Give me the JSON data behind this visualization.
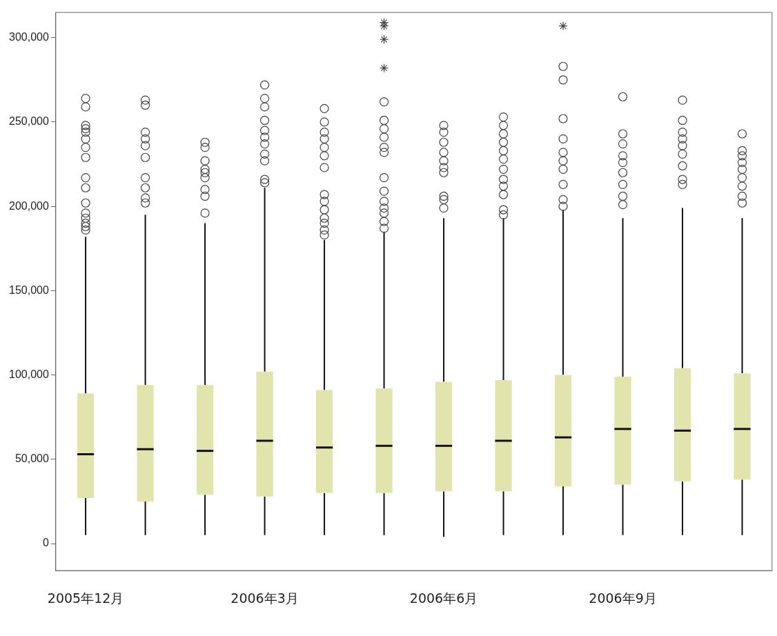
{
  "chart_data": {
    "type": "box",
    "categories": [
      "2005年12月",
      null,
      null,
      "2006年3月",
      null,
      null,
      "2006年6月",
      null,
      null,
      "2006年9月",
      null,
      null
    ],
    "color": "#e2e4ae",
    "ylim": [
      -16000,
      315000
    ],
    "yticks": [
      {
        "value": 0,
        "label": "0"
      },
      {
        "value": 50000,
        "label": "50,000"
      },
      {
        "value": 100000,
        "label": "100,000"
      },
      {
        "value": 150000,
        "label": "150,000"
      },
      {
        "value": 200000,
        "label": "200,000"
      },
      {
        "value": 250000,
        "label": "250,000"
      },
      {
        "value": 300000,
        "label": "300,000"
      }
    ],
    "boxes": [
      {
        "low": 5000,
        "q1": 27000,
        "median": 53000,
        "q3": 89000,
        "high": 182000,
        "outliers": [
          186000,
          188000,
          190000,
          193000,
          196000,
          202000,
          211000,
          217000,
          229000,
          235000,
          240000,
          244000,
          246000,
          248000,
          259000,
          264000
        ]
      },
      {
        "low": 5000,
        "q1": 25000,
        "median": 56000,
        "q3": 94000,
        "high": 195000,
        "outliers": [
          202000,
          205000,
          211000,
          217000,
          229000,
          236000,
          240000,
          244000,
          260000,
          263000
        ]
      },
      {
        "low": 5000,
        "q1": 29000,
        "median": 55000,
        "q3": 94000,
        "high": 190000,
        "outliers": [
          196000,
          206000,
          210000,
          217000,
          220000,
          222000,
          227000,
          235000,
          238000
        ]
      },
      {
        "low": 5000,
        "q1": 28000,
        "median": 61000,
        "q3": 102000,
        "high": 211000,
        "outliers": [
          214000,
          216000,
          227000,
          231000,
          237000,
          241000,
          245000,
          251000,
          259000,
          264000,
          272000
        ]
      },
      {
        "low": 5000,
        "q1": 30000,
        "median": 57000,
        "q3": 91000,
        "high": 180000,
        "outliers": [
          183000,
          186000,
          190000,
          193000,
          198000,
          203000,
          207000,
          223000,
          230000,
          235000,
          240000,
          244000,
          250000,
          258000
        ]
      },
      {
        "low": 5000,
        "q1": 30000,
        "median": 58000,
        "q3": 92000,
        "high": 185000,
        "outliers": [
          187000,
          191000,
          196000,
          199000,
          203000,
          209000,
          217000,
          232000,
          235000,
          241000,
          246000,
          251000,
          262000,
          282000,
          299000,
          307000,
          309000
        ]
      },
      {
        "low": 4000,
        "q1": 31000,
        "median": 58000,
        "q3": 96000,
        "high": 193000,
        "outliers": [
          199000,
          204000,
          206000,
          220000,
          223000,
          227000,
          232000,
          238000,
          244000,
          248000
        ]
      },
      {
        "low": 5000,
        "q1": 31000,
        "median": 61000,
        "q3": 97000,
        "high": 193000,
        "outliers": [
          195000,
          198000,
          207000,
          212000,
          216000,
          222000,
          228000,
          233000,
          238000,
          243000,
          248000,
          253000
        ]
      },
      {
        "low": 5000,
        "q1": 34000,
        "median": 63000,
        "q3": 100000,
        "high": 198000,
        "outliers": [
          200000,
          204000,
          213000,
          222000,
          227000,
          232000,
          240000,
          252000,
          275000,
          283000,
          307000
        ]
      },
      {
        "low": 5000,
        "q1": 35000,
        "median": 68000,
        "q3": 99000,
        "high": 193000,
        "outliers": [
          201000,
          206000,
          213000,
          220000,
          226000,
          230000,
          237000,
          243000,
          265000
        ]
      },
      {
        "low": 5000,
        "q1": 37000,
        "median": 67000,
        "q3": 104000,
        "high": 199000,
        "outliers": [
          213000,
          216000,
          224000,
          231000,
          236000,
          240000,
          244000,
          251000,
          263000
        ]
      },
      {
        "low": 5000,
        "q1": 38000,
        "median": 68000,
        "q3": 101000,
        "high": 193000,
        "outliers": [
          202000,
          206000,
          212000,
          217000,
          222000,
          226000,
          230000,
          233000,
          243000
        ]
      }
    ]
  }
}
